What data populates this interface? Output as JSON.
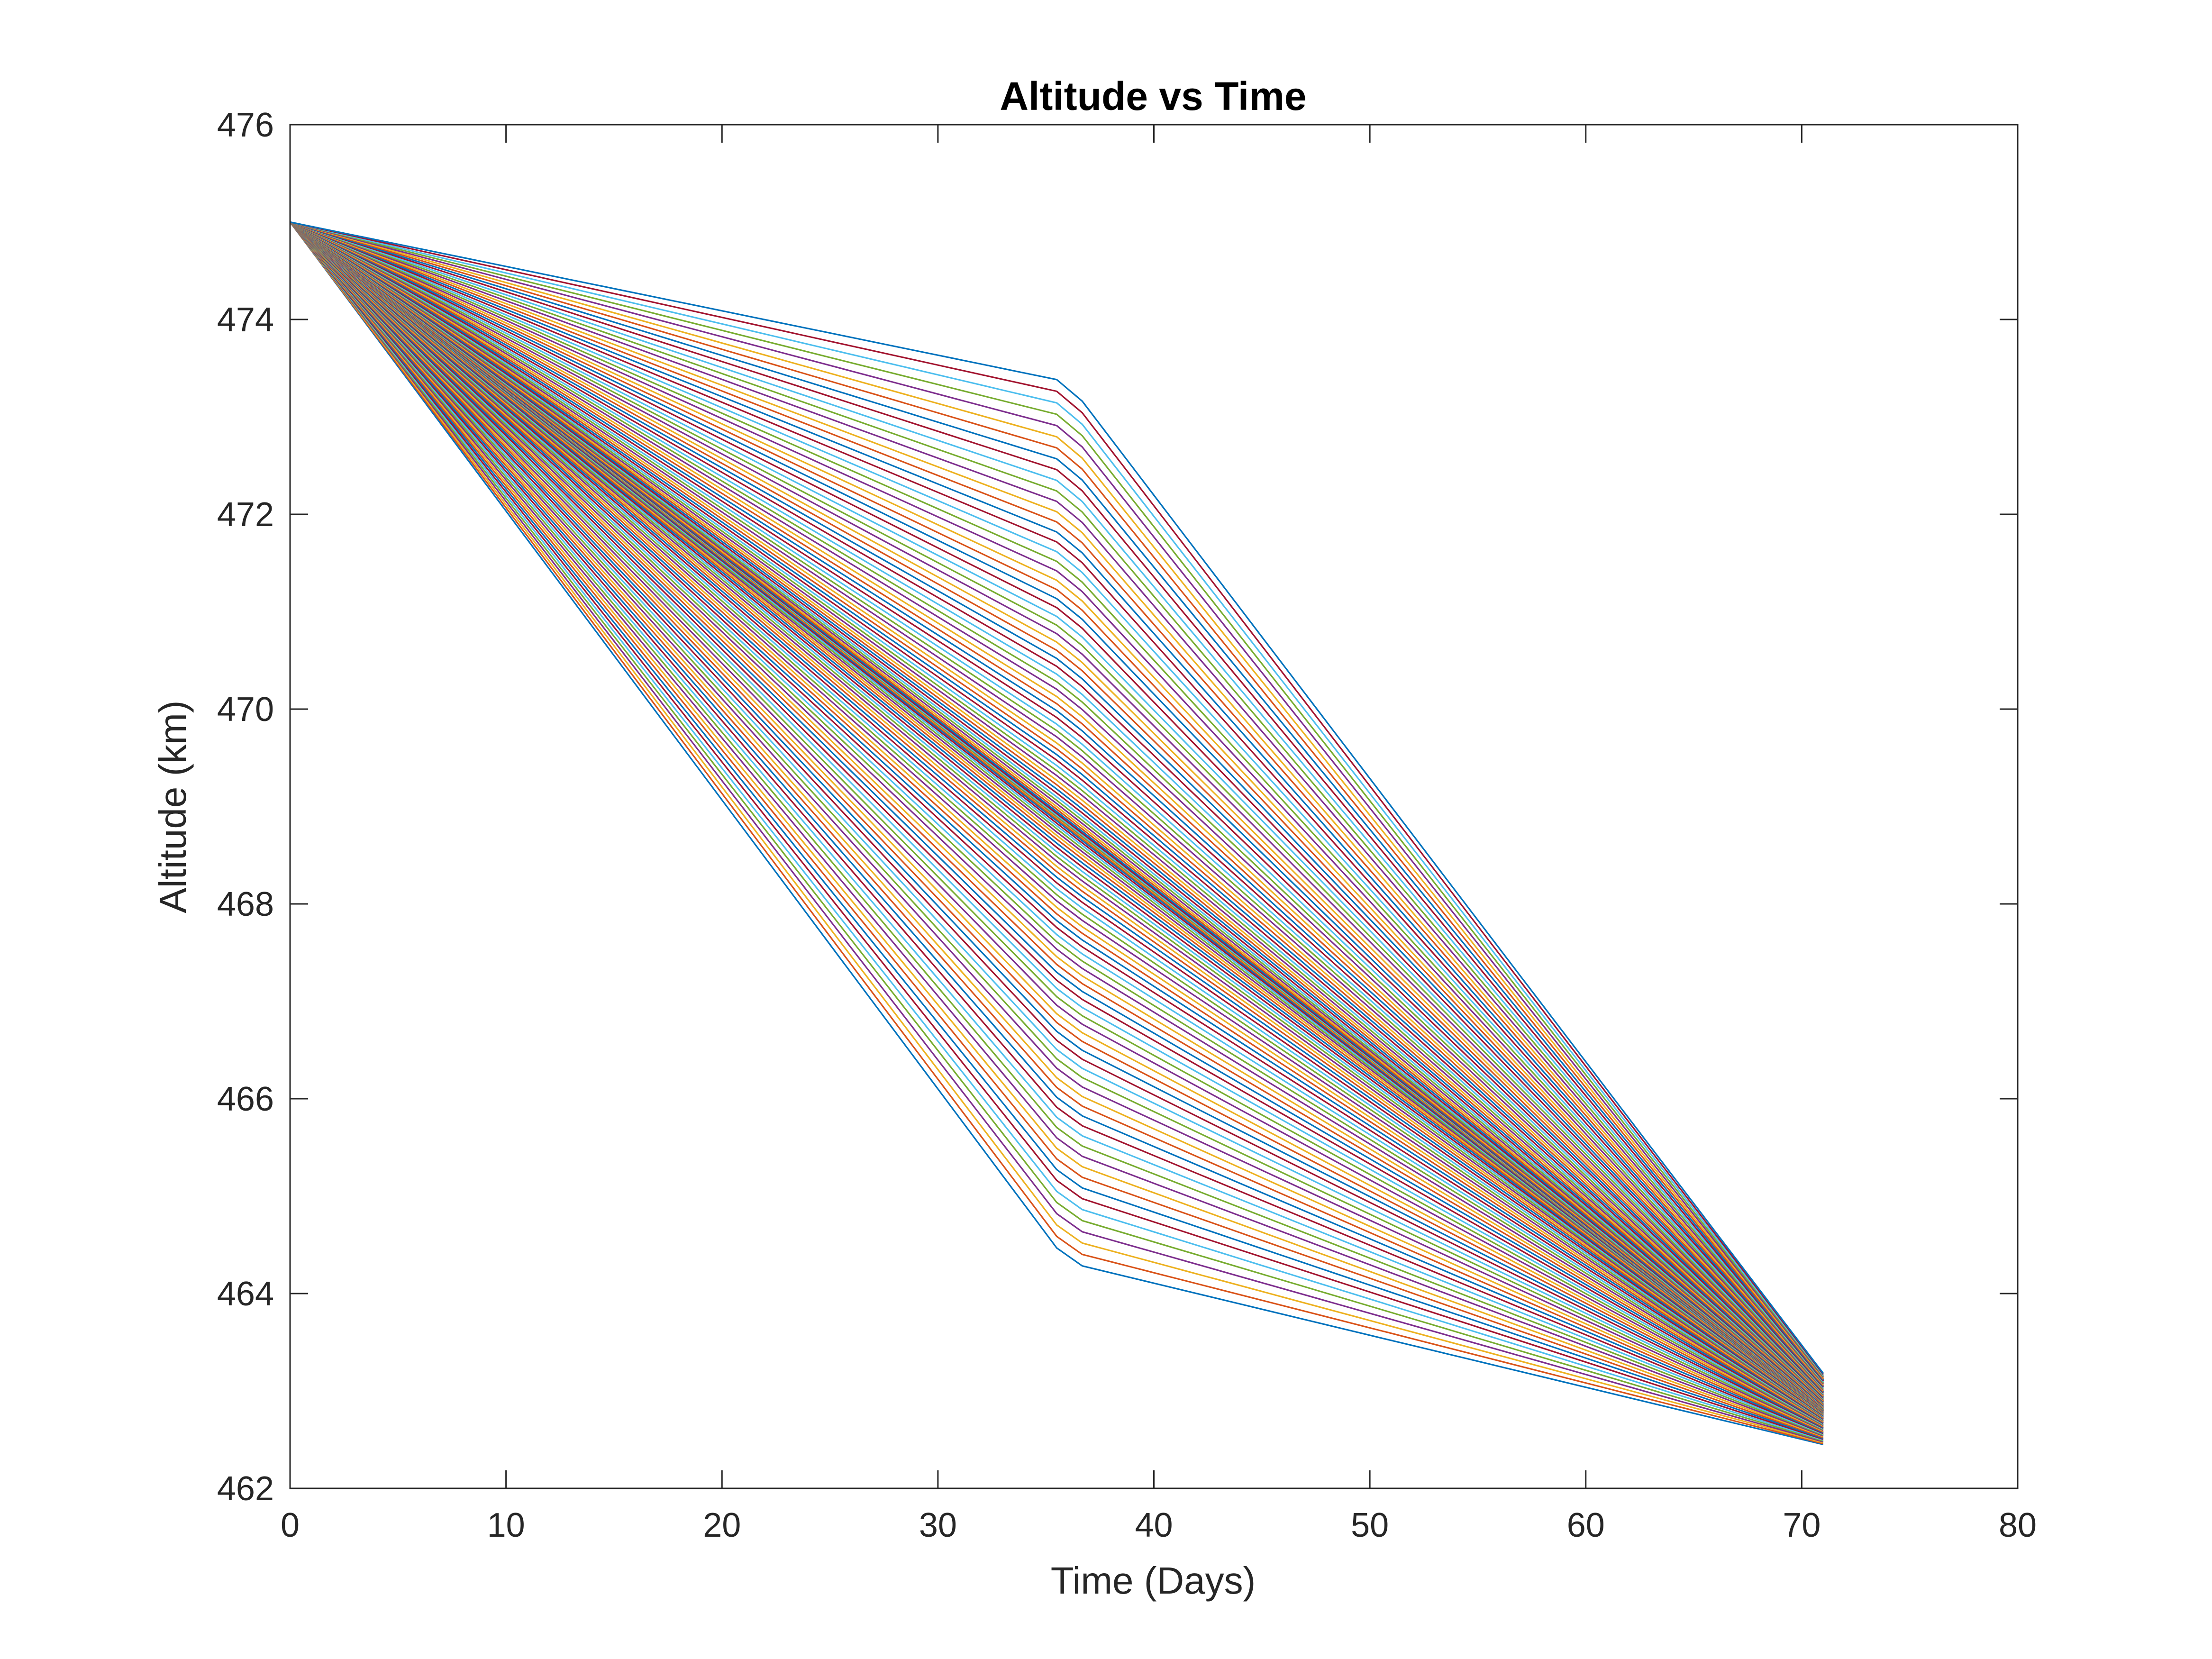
{
  "chart_data": {
    "type": "line",
    "title": "Altitude vs Time",
    "xlabel": "Time (Days)",
    "ylabel": "Altitude (km)",
    "xlim": [
      0,
      80
    ],
    "ylim": [
      462,
      476
    ],
    "xticks": [
      "0",
      "10",
      "20",
      "30",
      "40",
      "50",
      "60",
      "70",
      "80"
    ],
    "yticks": [
      "462",
      "464",
      "466",
      "468",
      "470",
      "472",
      "474",
      "476"
    ],
    "grid": false,
    "legend": "none",
    "series_count": 120,
    "series_colors": [
      "#0072BD",
      "#D95319",
      "#EDB120",
      "#7E2F8E",
      "#77AC30",
      "#4DBEEE",
      "#A2142F"
    ],
    "series_family": {
      "x": [
        0,
        36,
        71
      ],
      "first_series_y": [
        475.0,
        464.32,
        462.45
      ],
      "last_series_y": [
        475.0,
        473.36,
        463.18
      ],
      "middle_series_y": [
        475.0,
        468.9,
        462.8
      ],
      "series_y_at_71_range": [
        462.42,
        463.2
      ]
    }
  }
}
